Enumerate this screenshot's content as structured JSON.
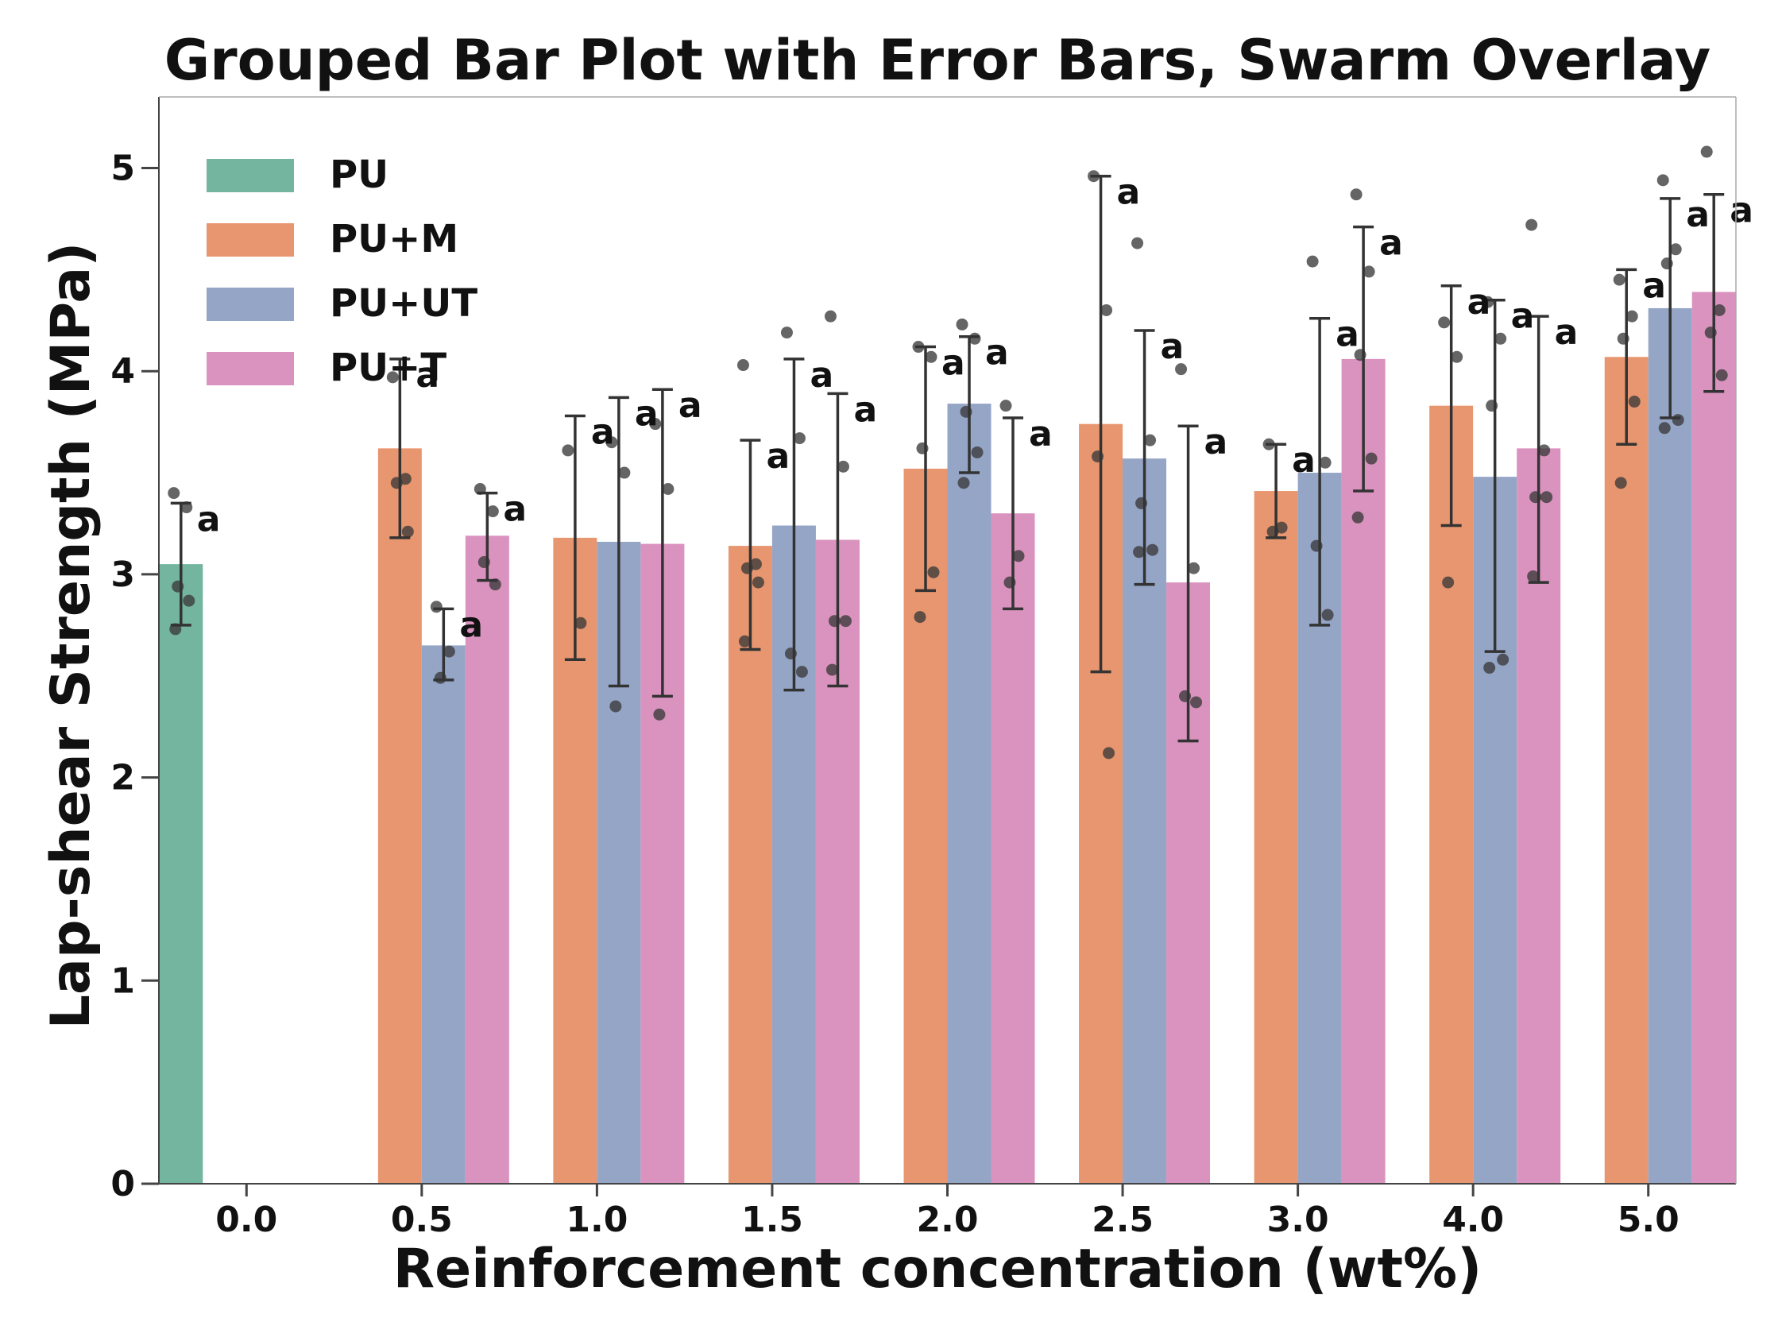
{
  "chart_data": {
    "type": "bar",
    "title": "Grouped Bar Plot with Error Bars, Swarm Overlay",
    "xlabel": "Reinforcement concentration (wt%)",
    "ylabel": "Lap-shear Strength (MPa)",
    "ylim": [
      0,
      5.35
    ],
    "yticks": [
      "0",
      "1",
      "2",
      "3",
      "4",
      "5"
    ],
    "categories": [
      "0.0",
      "0.5",
      "1.0",
      "1.5",
      "2.0",
      "2.5",
      "3.0",
      "4.0",
      "5.0"
    ],
    "grid": false,
    "legend_position": "top-left",
    "colors": {
      "PU": "#73b59e",
      "PU+M": "#e8966f",
      "PU+UT": "#95a5c6",
      "PU+T": "#da93bf",
      "points": "#3a3a3a",
      "errorbar": "#333333",
      "axis": "#444444"
    },
    "series": [
      {
        "name": "PU",
        "values": [
          3.05,
          null,
          null,
          null,
          null,
          null,
          null,
          null,
          null
        ],
        "errors": [
          [
            2.75,
            3.35
          ],
          null,
          null,
          null,
          null,
          null,
          null,
          null,
          null
        ],
        "labels": [
          "a",
          null,
          null,
          null,
          null,
          null,
          null,
          null,
          null
        ],
        "points": [
          [
            3.4,
            3.33,
            2.94,
            2.87,
            2.73
          ],
          [],
          [],
          [],
          [],
          [],
          [],
          [],
          []
        ]
      },
      {
        "name": "PU+M",
        "values": [
          null,
          3.62,
          3.18,
          3.14,
          3.52,
          3.74,
          3.41,
          3.83,
          4.07
        ],
        "errors": [
          null,
          [
            3.18,
            4.06
          ],
          [
            2.58,
            3.78
          ],
          [
            2.63,
            3.66
          ],
          [
            2.92,
            4.12
          ],
          [
            2.52,
            4.96
          ],
          [
            3.18,
            3.64
          ],
          [
            3.24,
            4.42
          ],
          [
            3.64,
            4.5
          ]
        ],
        "labels": [
          null,
          "a",
          "a",
          "a",
          "a",
          "a",
          "a",
          "a",
          "a"
        ],
        "points": [
          [],
          [
            3.97,
            3.47,
            3.45,
            3.21
          ],
          [
            3.61,
            2.76
          ],
          [
            4.03,
            3.05,
            3.03,
            2.96,
            2.67
          ],
          [
            4.12,
            4.07,
            3.62,
            3.01,
            2.79
          ],
          [
            4.96,
            4.3,
            3.58,
            2.12
          ],
          [
            3.64,
            3.23,
            3.21
          ],
          [
            4.24,
            4.07,
            2.96
          ],
          [
            4.45,
            4.27,
            4.16,
            3.85,
            3.45
          ]
        ]
      },
      {
        "name": "PU+UT",
        "values": [
          null,
          2.65,
          3.16,
          3.24,
          3.84,
          3.57,
          3.5,
          3.48,
          4.31
        ],
        "errors": [
          null,
          [
            2.48,
            2.83
          ],
          [
            2.45,
            3.87
          ],
          [
            2.43,
            4.06
          ],
          [
            3.5,
            4.17
          ],
          [
            2.95,
            4.2
          ],
          [
            2.75,
            4.26
          ],
          [
            2.62,
            4.35
          ],
          [
            3.77,
            4.85
          ]
        ],
        "labels": [
          null,
          "a",
          "a",
          "a",
          "a",
          "a",
          "a",
          "a",
          "a"
        ],
        "points": [
          [],
          [
            2.84,
            2.62,
            2.49
          ],
          [
            3.65,
            3.5,
            2.35
          ],
          [
            4.19,
            3.67,
            2.61,
            2.52
          ],
          [
            4.23,
            4.16,
            3.8,
            3.6,
            3.45
          ],
          [
            4.63,
            3.66,
            3.35,
            3.12,
            3.11
          ],
          [
            4.54,
            3.55,
            3.14,
            2.8
          ],
          [
            4.34,
            4.16,
            3.83,
            2.58,
            2.54
          ],
          [
            4.94,
            4.6,
            4.53,
            3.76,
            3.72
          ]
        ]
      },
      {
        "name": "PU+T",
        "values": [
          null,
          3.19,
          3.15,
          3.17,
          3.3,
          2.96,
          4.06,
          3.62,
          4.39
        ],
        "errors": [
          null,
          [
            2.97,
            3.4
          ],
          [
            2.4,
            3.91
          ],
          [
            2.45,
            3.89
          ],
          [
            2.83,
            3.77
          ],
          [
            2.18,
            3.73
          ],
          [
            3.41,
            4.71
          ],
          [
            2.96,
            4.27
          ],
          [
            3.9,
            4.87
          ]
        ],
        "labels": [
          null,
          "a",
          "a",
          "a",
          "a",
          "a",
          "a",
          "a",
          "a"
        ],
        "points": [
          [],
          [
            3.42,
            3.31,
            3.06,
            2.95
          ],
          [
            3.74,
            3.42,
            2.31
          ],
          [
            4.27,
            3.53,
            2.77,
            2.77,
            2.53
          ],
          [
            3.83,
            3.09,
            2.96
          ],
          [
            4.01,
            3.03,
            2.4,
            2.37
          ],
          [
            4.87,
            4.49,
            4.08,
            3.57,
            3.28
          ],
          [
            4.72,
            3.61,
            3.38,
            3.38,
            2.99
          ],
          [
            5.08,
            4.3,
            4.19,
            3.98
          ]
        ]
      }
    ]
  }
}
